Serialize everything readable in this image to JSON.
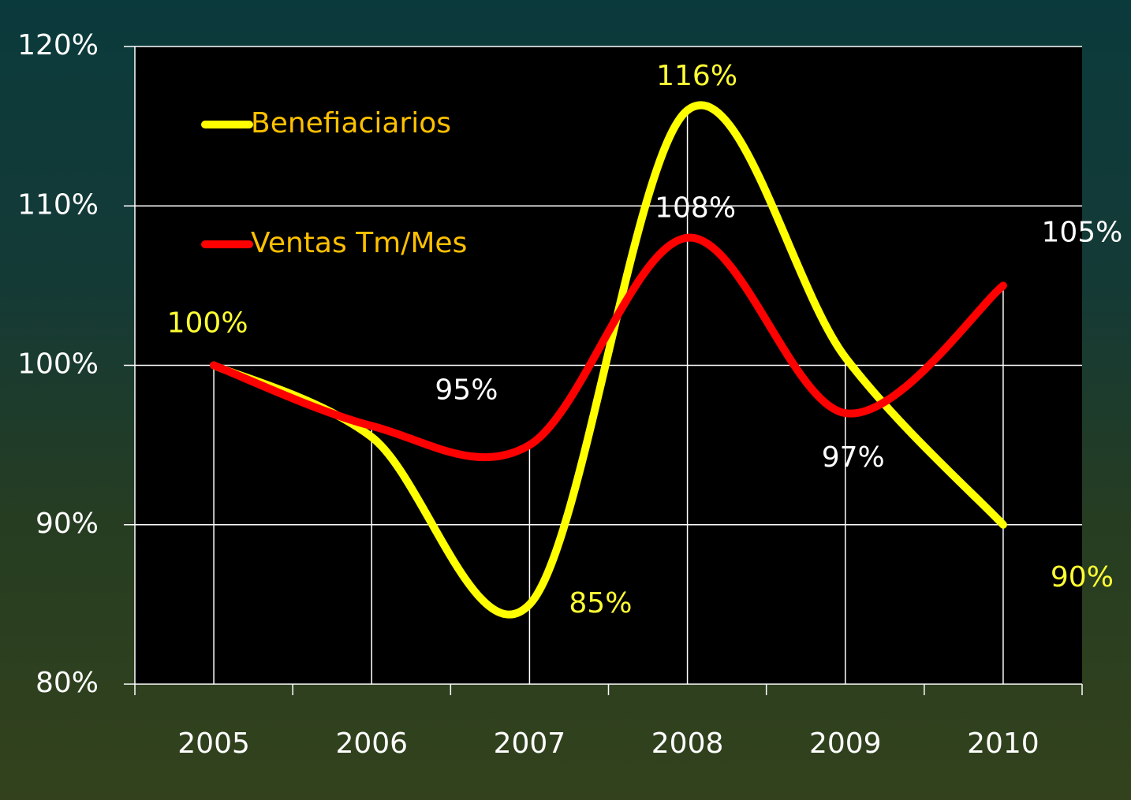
{
  "chart_data": {
    "type": "line",
    "categories": [
      "2005",
      "2006",
      "2007",
      "2008",
      "2009",
      "2010"
    ],
    "series": [
      {
        "name": "Benefiaciarios",
        "color": "#ffff00",
        "label_color": "#ffff33",
        "values": [
          100,
          95.5,
          85,
          116,
          100.5,
          90
        ],
        "value_labels": [
          "100%",
          null,
          "85%",
          "116%",
          null,
          "90%"
        ]
      },
      {
        "name": "Ventas Tm/Mes",
        "color": "#ff0000",
        "label_color": "#ffffff",
        "values": [
          100,
          96.2,
          95,
          108,
          97,
          105
        ],
        "value_labels": [
          null,
          null,
          "95%",
          "108%",
          "97%",
          "105%"
        ]
      }
    ],
    "ylim": [
      80,
      120
    ],
    "yticks": [
      {
        "value": 80,
        "label": "80%"
      },
      {
        "value": 90,
        "label": "90%"
      },
      {
        "value": 100,
        "label": "100%"
      },
      {
        "value": 110,
        "label": "110%"
      },
      {
        "value": 120,
        "label": "120%"
      }
    ],
    "grid": true,
    "smooth": true,
    "legend": "top-left",
    "legend_color": "#ffc000"
  }
}
